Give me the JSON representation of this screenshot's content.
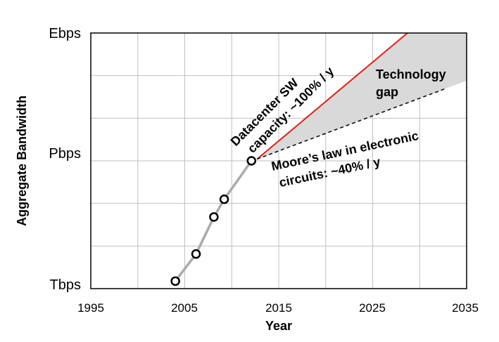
{
  "chart_data": {
    "type": "line",
    "title": "",
    "xlabel": "Year",
    "ylabel": "Aggregate Bandwidth",
    "xlim": [
      1995,
      2035
    ],
    "x_ticks": [
      "1995",
      "2005",
      "2015",
      "2025",
      "2035"
    ],
    "y_scale": "log",
    "y_ticks": [
      "Tbps",
      "Pbps",
      "Ebps"
    ],
    "grid": true,
    "series": [
      {
        "values_description": "measured",
        "x": [
          2004,
          2006.2,
          2008.1,
          2009.2,
          2012.1
        ],
        "y_bps": [
          1500000000000.0,
          6500000000000.0,
          48000000000000.0,
          125000000000000.0,
          1000000000000000.0
        ],
        "color": "#aaaaaa",
        "markers": "open-circle"
      }
    ],
    "trend_lines": [
      {
        "name": "Datacenter SW capacity: ~100% / y",
        "x": [
          2012.7,
          2028.7
        ],
        "y_bps": [
          1100000000000000.0,
          1e+18
        ],
        "color": "#e0201a",
        "style": "solid"
      },
      {
        "name": "Moore's law in electronic circuits:  ~40% / y",
        "x": [
          2012.7,
          2032.8
        ],
        "y_bps": [
          1100000000000000.0,
          5e+16
        ],
        "color": "#000000",
        "style": "dashed"
      }
    ],
    "gap_region": {
      "label": "Technology gap",
      "color": "#d9d9d9"
    },
    "annotations": {
      "sw_capacity": [
        "Datacenter SW",
        "capacity: ~100% / y"
      ],
      "technology_gap": [
        "Technology",
        "gap"
      ],
      "moores_law": [
        "Moore’s law in electronic",
        "circuits:  ~40% / y"
      ]
    }
  }
}
